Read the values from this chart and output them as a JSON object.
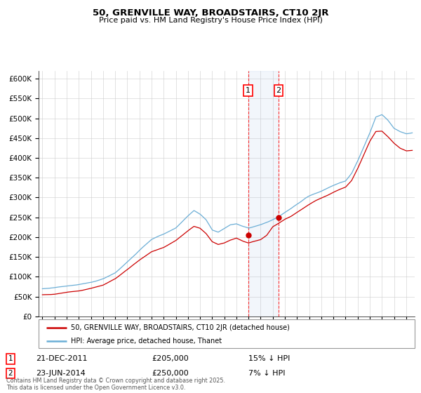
{
  "title": "50, GRENVILLE WAY, BROADSTAIRS, CT10 2JR",
  "subtitle": "Price paid vs. HM Land Registry's House Price Index (HPI)",
  "ylabel_ticks": [
    "£0",
    "£50K",
    "£100K",
    "£150K",
    "£200K",
    "£250K",
    "£300K",
    "£350K",
    "£400K",
    "£450K",
    "£500K",
    "£550K",
    "£600K"
  ],
  "ytick_values": [
    0,
    50000,
    100000,
    150000,
    200000,
    250000,
    300000,
    350000,
    400000,
    450000,
    500000,
    550000,
    600000
  ],
  "ylim": [
    0,
    620000
  ],
  "hpi_color": "#6baed6",
  "price_color": "#cc0000",
  "sale1_date": 2011.97,
  "sale1_price": 205000,
  "sale2_date": 2014.48,
  "sale2_price": 250000,
  "legend_line1": "50, GRENVILLE WAY, BROADSTAIRS, CT10 2JR (detached house)",
  "legend_line2": "HPI: Average price, detached house, Thanet",
  "annotation1_date": "21-DEC-2011",
  "annotation1_price": "£205,000",
  "annotation1_hpi": "15% ↓ HPI",
  "annotation2_date": "23-JUN-2014",
  "annotation2_price": "£250,000",
  "annotation2_hpi": "7% ↓ HPI",
  "footnote": "Contains HM Land Registry data © Crown copyright and database right 2025.\nThis data is licensed under the Open Government Licence v3.0.",
  "background_color": "#ffffff",
  "grid_color": "#cccccc"
}
